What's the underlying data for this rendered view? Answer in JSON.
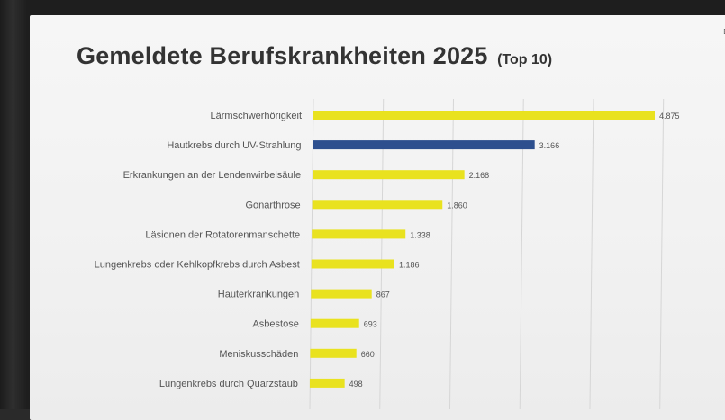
{
  "corner_text": "Be",
  "chart_data": {
    "type": "bar",
    "orientation": "horizontal",
    "title": "Gemeldete Berufskrankheiten 2025",
    "subtitle": "(Top 10)",
    "categories": [
      "Lärmschwerhörigkeit",
      "Hautkrebs durch UV-Strahlung",
      "Erkrankungen an der Lendenwirbelsäule",
      "Gonarthrose",
      "Läsionen der Rotatorenmanschette",
      "Lungenkrebs oder Kehlkopfkrebs durch Asbest",
      "Hauterkrankungen",
      "Asbestose",
      "Meniskusschäden",
      "Lungenkrebs durch Quarzstaub"
    ],
    "values": [
      4875,
      3166,
      2168,
      1860,
      1338,
      1186,
      867,
      693,
      660,
      498
    ],
    "value_labels": [
      "4.875",
      "3.166",
      "2.168",
      "1.860",
      "1.338",
      "1.186",
      "867",
      "693",
      "660",
      "498"
    ],
    "xlim": [
      0,
      5000
    ],
    "grid": true,
    "colors": {
      "bar": "#e9e21f",
      "highlight_bar": "#2d4f8e",
      "highlight_index": 1,
      "grid": "#d6d6d6",
      "label": "#555555"
    }
  }
}
